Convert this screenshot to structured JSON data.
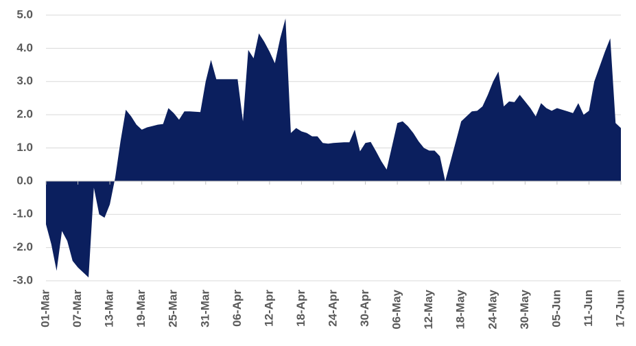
{
  "chart_data": {
    "type": "area",
    "color": "#0b1f5e",
    "grid": true,
    "ylim": [
      -3,
      5
    ],
    "yticks": [
      {
        "value": 5,
        "label": "5.0"
      },
      {
        "value": 4,
        "label": "4.0"
      },
      {
        "value": 3,
        "label": "3.0"
      },
      {
        "value": 2,
        "label": "2.0"
      },
      {
        "value": 1,
        "label": "1.0"
      },
      {
        "value": 0,
        "label": "0.0"
      },
      {
        "value": -1,
        "label": "-1.0"
      },
      {
        "value": -2,
        "label": "-2.0"
      },
      {
        "value": -3,
        "label": "-3.0"
      }
    ],
    "categories": [
      "01-Mar",
      null,
      null,
      null,
      null,
      null,
      "07-Mar",
      null,
      null,
      null,
      null,
      null,
      "13-Mar",
      null,
      null,
      null,
      null,
      null,
      "19-Mar",
      null,
      null,
      null,
      null,
      null,
      "25-Mar",
      null,
      null,
      null,
      null,
      null,
      "31-Mar",
      null,
      null,
      null,
      null,
      null,
      "06-Apr",
      null,
      null,
      null,
      null,
      null,
      "12-Apr",
      null,
      null,
      null,
      null,
      null,
      "18-Apr",
      null,
      null,
      null,
      null,
      null,
      "24-Apr",
      null,
      null,
      null,
      null,
      null,
      "30-Apr",
      null,
      null,
      null,
      null,
      null,
      "06-May",
      null,
      null,
      null,
      null,
      null,
      "12-May",
      null,
      null,
      null,
      null,
      null,
      "18-May",
      null,
      null,
      null,
      null,
      null,
      "24-May",
      null,
      null,
      null,
      null,
      null,
      "30-May",
      null,
      null,
      null,
      null,
      null,
      "05-Jun",
      null,
      null,
      null,
      null,
      null,
      "11-Jun",
      null,
      null,
      null,
      null,
      null,
      "17-Jun"
    ],
    "values": [
      -1.3,
      -1.9,
      -2.7,
      -1.5,
      -1.8,
      -2.4,
      -2.6,
      -2.75,
      -2.9,
      -0.2,
      -1.0,
      -1.1,
      -0.7,
      0.1,
      1.2,
      2.15,
      1.95,
      1.7,
      1.55,
      1.62,
      1.66,
      1.7,
      1.72,
      2.2,
      2.05,
      1.85,
      2.1,
      2.1,
      2.09,
      2.08,
      3.0,
      3.65,
      3.07,
      3.07,
      3.07,
      3.07,
      3.07,
      1.8,
      3.95,
      3.7,
      4.45,
      4.2,
      3.9,
      3.55,
      4.3,
      4.9,
      1.45,
      1.6,
      1.5,
      1.45,
      1.35,
      1.35,
      1.15,
      1.13,
      1.15,
      1.16,
      1.17,
      1.17,
      1.55,
      0.9,
      1.15,
      1.18,
      0.9,
      0.6,
      0.35,
      1.05,
      1.75,
      1.8,
      1.65,
      1.45,
      1.2,
      1.0,
      0.92,
      0.92,
      0.75,
      0.0,
      0.6,
      1.2,
      1.8,
      1.95,
      2.1,
      2.12,
      2.25,
      2.6,
      3.0,
      3.3,
      2.25,
      2.4,
      2.38,
      2.6,
      2.4,
      2.2,
      1.95,
      2.35,
      2.2,
      2.12,
      2.2,
      2.15,
      2.1,
      2.05,
      2.35,
      2.0,
      2.12,
      3.0,
      3.45,
      3.9,
      4.3,
      1.75,
      1.6
    ]
  }
}
